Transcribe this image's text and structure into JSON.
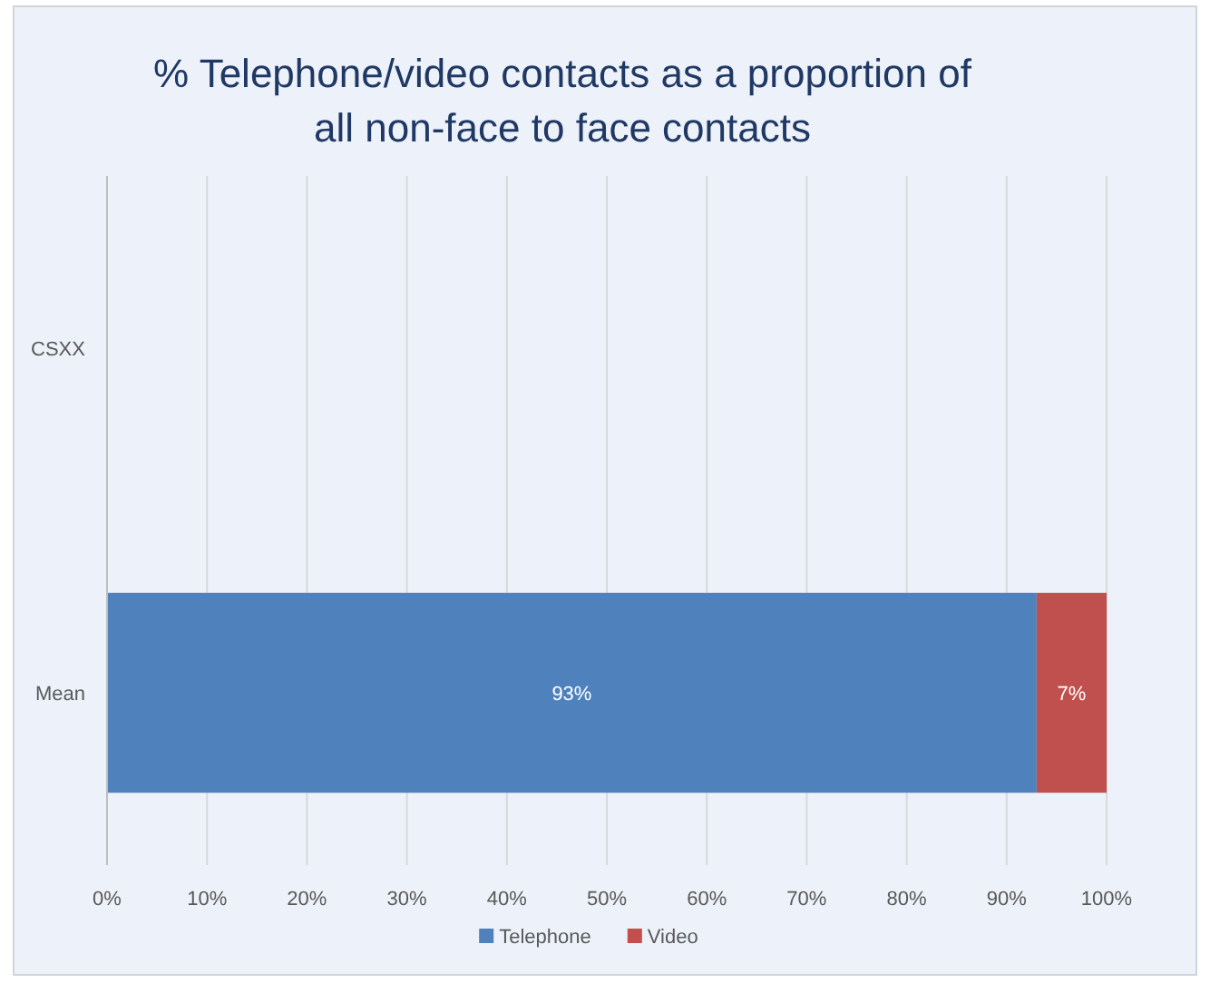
{
  "chart_data": {
    "type": "bar",
    "orientation": "horizontal",
    "stacked": true,
    "title": "% Telephone/video contacts as a proportion of\nall non-face to face contacts",
    "categories": [
      "CSXX",
      "Mean"
    ],
    "series": [
      {
        "name": "Telephone",
        "color": "#4f81bd",
        "values": [
          null,
          93
        ],
        "value_labels": [
          null,
          "93%"
        ]
      },
      {
        "name": "Video",
        "color": "#c0504d",
        "values": [
          null,
          7
        ],
        "value_labels": [
          null,
          "7%"
        ]
      }
    ],
    "xlim": [
      0,
      100
    ],
    "xticks": [
      {
        "value": 0,
        "label": "0%"
      },
      {
        "value": 10,
        "label": "10%"
      },
      {
        "value": 20,
        "label": "20%"
      },
      {
        "value": 30,
        "label": "30%"
      },
      {
        "value": 40,
        "label": "40%"
      },
      {
        "value": 50,
        "label": "50%"
      },
      {
        "value": 60,
        "label": "60%"
      },
      {
        "value": 70,
        "label": "70%"
      },
      {
        "value": 80,
        "label": "80%"
      },
      {
        "value": 90,
        "label": "90%"
      },
      {
        "value": 100,
        "label": "100%"
      }
    ],
    "grid": "x",
    "legend": "bottom"
  }
}
